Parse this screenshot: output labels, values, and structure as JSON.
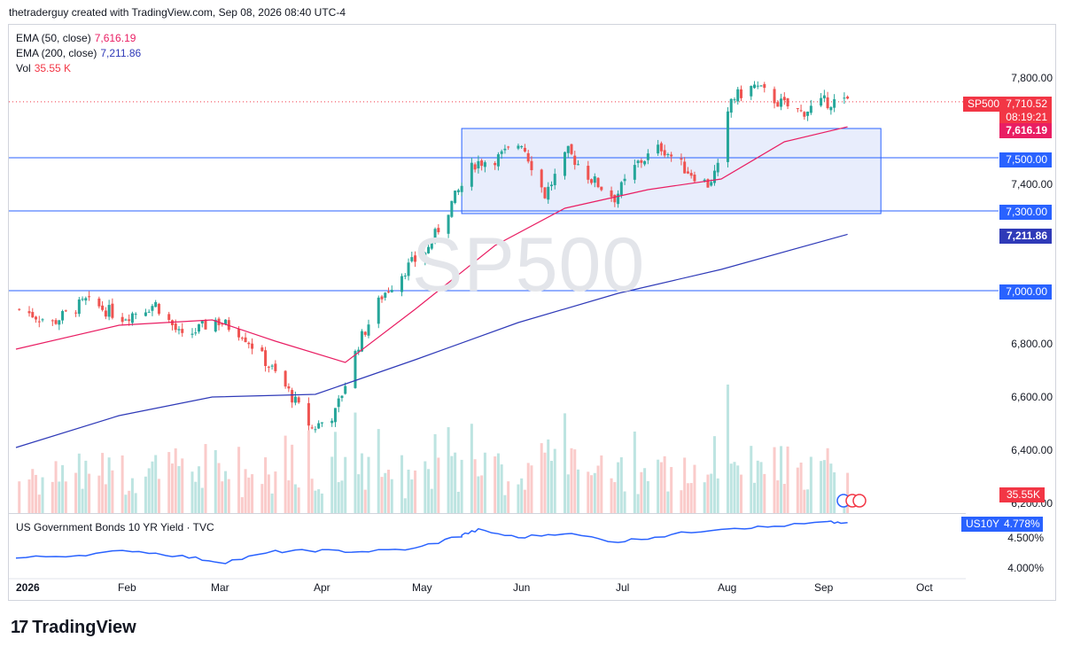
{
  "header": {
    "text": "thetraderguy created with TradingView.com, Sep 08, 2026 08:40 UTC-4"
  },
  "legend": {
    "ema50": {
      "label": "EMA (50, close)",
      "value": "7,616.19",
      "color": "#e91e63"
    },
    "ema200": {
      "label": "EMA (200, close)",
      "value": "7,211.86",
      "color": "#2f3ab8"
    },
    "vol": {
      "label": "Vol",
      "value": "35.55 K",
      "color": "#f23645"
    }
  },
  "watermark": "SP500",
  "price_axis": [
    "7,800.00",
    "7,400.00",
    "6,800.00",
    "6,600.00",
    "6,400.00",
    "6,200.00"
  ],
  "tags": {
    "symbol": "SP500",
    "last_price": "7,710.52",
    "countdown": "08:19:21",
    "ema50": "7,616.19",
    "level_7500": "7,500.00",
    "level_7300": "7,300.00",
    "ema200": "7,211.86",
    "level_7000": "7,000.00",
    "volume": "35.55K",
    "bond_symbol": "US10Y",
    "bond_value": "4.778%"
  },
  "pane2": {
    "title": "US Government Bonds 10 YR Yield · TVC",
    "axis": [
      "4.500%",
      "4.000%"
    ]
  },
  "x_axis": [
    "2026",
    "Feb",
    "Mar",
    "Apr",
    "May",
    "Jun",
    "Jul",
    "Aug",
    "Sep",
    "Oct"
  ],
  "footer": {
    "brand": "TradingView"
  },
  "colors": {
    "up": "#26a69a",
    "down": "#ef5350",
    "ema50": "#e91e63",
    "ema200": "#2f3ab8",
    "level": "#2962ff",
    "box_fill": "#e8edfc",
    "bond": "#2962ff"
  },
  "chart_data": {
    "type": "candlestick",
    "title": "SP500",
    "x_range": [
      "2026-01-01",
      "2026-10-01"
    ],
    "ylim": [
      6150,
      7900
    ],
    "horizontal_levels": [
      7500,
      7300,
      7000
    ],
    "range_box": {
      "from": "2026-05-15",
      "to": "2026-09-18",
      "price_top": 7610,
      "price_bottom": 7290
    },
    "last_price": 7710.52,
    "series": [
      {
        "name": "SP500",
        "close_path": [
          [
            "2026-01-02",
            6930
          ],
          [
            "2026-01-12",
            6880
          ],
          [
            "2026-01-22",
            6960
          ],
          [
            "2026-02-02",
            6900
          ],
          [
            "2026-02-12",
            6950
          ],
          [
            "2026-02-20",
            6820
          ],
          [
            "2026-03-02",
            6890
          ],
          [
            "2026-03-10",
            6840
          ],
          [
            "2026-03-18",
            6720
          ],
          [
            "2026-03-24",
            6620
          ],
          [
            "2026-03-31",
            6480
          ],
          [
            "2026-04-07",
            6540
          ],
          [
            "2026-04-14",
            6800
          ],
          [
            "2026-04-21",
            6980
          ],
          [
            "2026-04-28",
            7080
          ],
          [
            "2026-05-05",
            7160
          ],
          [
            "2026-05-12",
            7330
          ],
          [
            "2026-05-19",
            7480
          ],
          [
            "2026-05-26",
            7500
          ],
          [
            "2026-06-02",
            7560
          ],
          [
            "2026-06-09",
            7360
          ],
          [
            "2026-06-16",
            7520
          ],
          [
            "2026-06-23",
            7420
          ],
          [
            "2026-06-30",
            7350
          ],
          [
            "2026-07-07",
            7480
          ],
          [
            "2026-07-14",
            7540
          ],
          [
            "2026-07-21",
            7460
          ],
          [
            "2026-07-28",
            7400
          ],
          [
            "2026-07-31",
            7460
          ],
          [
            "2026-08-04",
            7720
          ],
          [
            "2026-08-11",
            7770
          ],
          [
            "2026-08-18",
            7710
          ],
          [
            "2026-08-25",
            7670
          ],
          [
            "2026-09-01",
            7710
          ],
          [
            "2026-09-08",
            7710.52
          ]
        ]
      },
      {
        "name": "EMA (50, close)",
        "values": [
          [
            "2026-01-01",
            6780
          ],
          [
            "2026-02-01",
            6870
          ],
          [
            "2026-03-01",
            6890
          ],
          [
            "2026-03-20",
            6810
          ],
          [
            "2026-04-10",
            6730
          ],
          [
            "2026-05-01",
            6930
          ],
          [
            "2026-05-25",
            7170
          ],
          [
            "2026-06-15",
            7310
          ],
          [
            "2026-07-10",
            7380
          ],
          [
            "2026-08-01",
            7420
          ],
          [
            "2026-08-20",
            7560
          ],
          [
            "2026-09-08",
            7616.19
          ]
        ]
      },
      {
        "name": "EMA (200, close)",
        "values": [
          [
            "2026-01-01",
            6410
          ],
          [
            "2026-02-01",
            6530
          ],
          [
            "2026-03-01",
            6600
          ],
          [
            "2026-04-01",
            6610
          ],
          [
            "2026-05-01",
            6740
          ],
          [
            "2026-06-01",
            6880
          ],
          [
            "2026-07-01",
            6990
          ],
          [
            "2026-08-01",
            7080
          ],
          [
            "2026-09-08",
            7211.86
          ]
        ]
      }
    ],
    "bond_series": {
      "name": "US Government Bonds 10 YR Yield",
      "ylim": [
        3.85,
        4.85
      ],
      "values": [
        [
          "2026-01-01",
          4.17
        ],
        [
          "2026-01-20",
          4.22
        ],
        [
          "2026-02-05",
          4.3
        ],
        [
          "2026-02-20",
          4.2
        ],
        [
          "2026-03-05",
          4.1
        ],
        [
          "2026-03-20",
          4.28
        ],
        [
          "2026-04-01",
          4.3
        ],
        [
          "2026-04-15",
          4.28
        ],
        [
          "2026-05-01",
          4.33
        ],
        [
          "2026-05-15",
          4.55
        ],
        [
          "2026-05-20",
          4.65
        ],
        [
          "2026-06-01",
          4.52
        ],
        [
          "2026-06-15",
          4.6
        ],
        [
          "2026-07-01",
          4.45
        ],
        [
          "2026-07-15",
          4.55
        ],
        [
          "2026-08-01",
          4.68
        ],
        [
          "2026-08-15",
          4.7
        ],
        [
          "2026-09-01",
          4.78
        ],
        [
          "2026-09-08",
          4.778
        ]
      ]
    }
  }
}
